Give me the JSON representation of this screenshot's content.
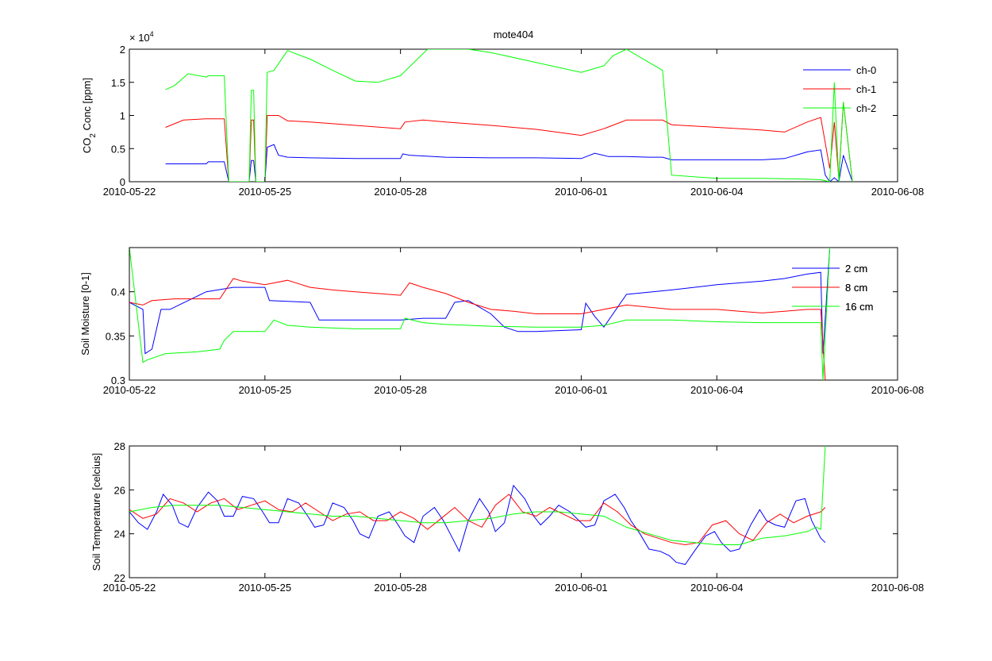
{
  "figure_title": "mote404",
  "chart_data": [
    {
      "type": "line",
      "title": "mote404",
      "xlabel": "",
      "ylabel": "CO2 Conc [ppm]",
      "ylabel_main": "CO",
      "ylabel_sub": "2",
      "ylabel_rest": " Conc [ppm]",
      "scale_label_base": "× 10",
      "scale_label_exp": "4",
      "xlim": [
        "2010-05-22",
        "2010-06-08"
      ],
      "ylim": [
        0,
        20000
      ],
      "yticks": [
        0,
        5000,
        10000,
        15000,
        20000
      ],
      "ytick_labels": [
        "0",
        "0.5",
        "1",
        "1.5",
        "2"
      ],
      "xticks": [
        "2010-05-22",
        "2010-05-25",
        "2010-05-28",
        "2010-06-01",
        "2010-06-04",
        "2010-06-08"
      ],
      "legend_position": "top-right",
      "grid": false,
      "series": [
        {
          "name": "ch-0",
          "color": "#0000ff",
          "x": [
            0.8,
            1.7,
            1.75,
            2.1,
            2.2,
            2.65,
            2.7,
            2.75,
            2.8,
            3.0,
            3.05,
            3.2,
            3.3,
            3.5,
            4.0,
            5.0,
            6.0,
            6.05,
            6.2,
            7.0,
            8.0,
            9.0,
            10.0,
            10.3,
            10.6,
            11.0,
            11.5,
            11.8,
            12.0,
            13.0,
            14.0,
            14.5,
            15.0,
            15.3,
            15.4,
            15.5,
            15.6,
            15.7,
            15.8,
            16.0
          ],
          "y": [
            2700,
            2700,
            3000,
            3000,
            0,
            0,
            3200,
            3200,
            0,
            0,
            5200,
            5600,
            4000,
            3700,
            3600,
            3500,
            3500,
            4200,
            4000,
            3700,
            3600,
            3600,
            3500,
            4300,
            3800,
            3800,
            3700,
            3700,
            3300,
            3300,
            3300,
            3500,
            4500,
            4800,
            1000,
            0,
            600,
            0,
            4000,
            0
          ]
        },
        {
          "name": "ch-1",
          "color": "#ff0000",
          "x": [
            0.8,
            1.2,
            1.7,
            1.75,
            2.1,
            2.2,
            2.65,
            2.7,
            2.75,
            2.8,
            3.0,
            3.05,
            3.3,
            3.5,
            4.0,
            5.0,
            6.0,
            6.1,
            6.5,
            7.0,
            8.0,
            9.0,
            10.0,
            10.5,
            11.0,
            11.5,
            11.8,
            12.0,
            13.0,
            14.0,
            14.5,
            15.0,
            15.3,
            15.5,
            15.6,
            15.7,
            15.8,
            16.0
          ],
          "y": [
            8200,
            9300,
            9500,
            9500,
            9500,
            0,
            0,
            9300,
            9300,
            0,
            0,
            10000,
            10000,
            9200,
            9000,
            8500,
            8000,
            9000,
            9300,
            9000,
            8500,
            7900,
            7000,
            8000,
            9300,
            9300,
            9300,
            8600,
            8200,
            7800,
            7500,
            9000,
            9700,
            2000,
            9000,
            500,
            12000,
            0
          ]
        },
        {
          "name": "ch-2",
          "color": "#00ff00",
          "x": [
            0.8,
            1.0,
            1.3,
            1.7,
            1.75,
            2.1,
            2.2,
            2.65,
            2.7,
            2.75,
            2.8,
            3.0,
            3.05,
            3.2,
            3.5,
            4.0,
            4.5,
            5.0,
            5.5,
            6.0,
            6.6,
            7.5,
            8.0,
            9.0,
            10.0,
            10.5,
            10.7,
            11.0,
            11.5,
            11.8,
            12.0,
            13.0,
            14.0,
            15.0,
            15.3,
            15.5,
            15.6,
            15.7,
            15.8,
            16.0
          ],
          "y": [
            13900,
            14500,
            16300,
            15800,
            16000,
            16000,
            0,
            0,
            13800,
            13800,
            0,
            0,
            16500,
            16800,
            19800,
            18500,
            16800,
            15200,
            15000,
            16000,
            20000,
            20000,
            19500,
            18000,
            16500,
            17500,
            19000,
            20000,
            18000,
            16800,
            1000,
            500,
            500,
            400,
            300,
            0,
            15000,
            0,
            12000,
            0
          ]
        }
      ]
    },
    {
      "type": "line",
      "title": "",
      "xlabel": "",
      "ylabel": "Soil Moisture [0-1]",
      "xlim": [
        "2010-05-22",
        "2010-06-08"
      ],
      "ylim": [
        0.3,
        0.45
      ],
      "yticks": [
        0.3,
        0.35,
        0.4
      ],
      "ytick_labels": [
        "0.3",
        "0.35",
        "0.4"
      ],
      "xticks": [
        "2010-05-22",
        "2010-05-25",
        "2010-05-28",
        "2010-06-01",
        "2010-06-04",
        "2010-06-08"
      ],
      "legend_position": "top-right",
      "grid": false,
      "series": [
        {
          "name": "2 cm",
          "color": "#0000ff",
          "x": [
            0.0,
            0.3,
            0.35,
            0.5,
            0.7,
            0.9,
            1.3,
            1.7,
            2.3,
            3.0,
            3.1,
            4.0,
            4.2,
            5.0,
            6.0,
            6.5,
            7.0,
            7.2,
            7.5,
            8.0,
            8.3,
            8.6,
            9.0,
            10.0,
            10.1,
            10.3,
            10.5,
            11.0,
            12.0,
            13.0,
            13.5,
            14.0,
            14.5,
            15.0,
            15.3,
            15.35,
            15.5
          ],
          "y": [
            0.388,
            0.38,
            0.33,
            0.335,
            0.38,
            0.38,
            0.39,
            0.4,
            0.405,
            0.405,
            0.39,
            0.388,
            0.368,
            0.368,
            0.368,
            0.37,
            0.37,
            0.388,
            0.39,
            0.375,
            0.36,
            0.355,
            0.355,
            0.357,
            0.387,
            0.372,
            0.36,
            0.397,
            0.402,
            0.408,
            0.41,
            0.412,
            0.415,
            0.42,
            0.422,
            0.33,
            0.45
          ]
        },
        {
          "name": "8 cm",
          "color": "#ff0000",
          "x": [
            0.0,
            0.3,
            0.5,
            1.0,
            1.5,
            2.0,
            2.3,
            2.5,
            3.0,
            3.5,
            4.0,
            4.5,
            5.0,
            5.5,
            6.0,
            6.2,
            6.5,
            7.0,
            7.5,
            8.0,
            8.5,
            9.0,
            10.0,
            10.5,
            11.0,
            12.0,
            13.0,
            13.5,
            14.0,
            14.5,
            15.0,
            15.3,
            15.4
          ],
          "y": [
            0.388,
            0.385,
            0.39,
            0.392,
            0.392,
            0.392,
            0.415,
            0.412,
            0.408,
            0.413,
            0.405,
            0.402,
            0.4,
            0.398,
            0.396,
            0.41,
            0.405,
            0.398,
            0.388,
            0.38,
            0.378,
            0.375,
            0.375,
            0.38,
            0.385,
            0.38,
            0.38,
            0.378,
            0.376,
            0.378,
            0.38,
            0.38,
            0.3
          ]
        },
        {
          "name": "16 cm",
          "color": "#00ff00",
          "x": [
            0.0,
            0.3,
            0.4,
            0.8,
            1.5,
            2.0,
            2.1,
            2.3,
            3.0,
            3.2,
            3.5,
            4.0,
            5.0,
            6.0,
            6.1,
            6.5,
            7.0,
            8.0,
            9.0,
            10.0,
            10.5,
            11.0,
            12.0,
            13.0,
            14.0,
            15.0,
            15.3,
            15.35,
            15.5
          ],
          "y": [
            0.45,
            0.32,
            0.323,
            0.33,
            0.332,
            0.335,
            0.345,
            0.355,
            0.355,
            0.368,
            0.362,
            0.36,
            0.358,
            0.358,
            0.37,
            0.365,
            0.363,
            0.361,
            0.36,
            0.36,
            0.362,
            0.368,
            0.368,
            0.366,
            0.365,
            0.365,
            0.365,
            0.3,
            0.45
          ]
        }
      ]
    },
    {
      "type": "line",
      "title": "",
      "xlabel": "",
      "ylabel": "Soil Temperature [celcius]",
      "xlim": [
        "2010-05-22",
        "2010-06-08"
      ],
      "ylim": [
        22,
        28
      ],
      "yticks": [
        22,
        24,
        26,
        28
      ],
      "ytick_labels": [
        "22",
        "24",
        "26",
        "28"
      ],
      "xticks": [
        "2010-05-22",
        "2010-05-25",
        "2010-05-28",
        "2010-06-01",
        "2010-06-04",
        "2010-06-08"
      ],
      "legend_position": "top-right",
      "grid": false,
      "series": [
        {
          "name": "2 cm",
          "color": "#0000ff",
          "x": [
            0.0,
            0.2,
            0.4,
            0.6,
            0.75,
            0.95,
            1.1,
            1.3,
            1.5,
            1.75,
            1.95,
            2.1,
            2.3,
            2.5,
            2.75,
            2.95,
            3.1,
            3.3,
            3.5,
            3.75,
            3.95,
            4.1,
            4.3,
            4.5,
            4.75,
            4.95,
            5.1,
            5.3,
            5.5,
            5.75,
            5.95,
            6.1,
            6.3,
            6.5,
            6.75,
            6.95,
            7.1,
            7.3,
            7.5,
            7.75,
            7.95,
            8.1,
            8.3,
            8.5,
            8.75,
            8.95,
            9.1,
            9.3,
            9.5,
            9.75,
            9.95,
            10.1,
            10.3,
            10.5,
            10.75,
            10.95,
            11.1,
            11.3,
            11.5,
            11.75,
            11.95,
            12.1,
            12.3,
            12.5,
            12.75,
            12.95,
            13.1,
            13.3,
            13.5,
            13.75,
            13.95,
            14.1,
            14.3,
            14.5,
            14.75,
            14.95,
            15.1,
            15.3,
            15.4
          ],
          "y": [
            25,
            24.5,
            24.2,
            25,
            25.8,
            25.3,
            24.5,
            24.3,
            25.2,
            25.9,
            25.5,
            24.8,
            24.8,
            25.7,
            25.6,
            25.0,
            24.5,
            24.5,
            25.6,
            25.4,
            24.8,
            24.3,
            24.4,
            25.4,
            25.2,
            24.6,
            24.0,
            23.8,
            24.8,
            25.0,
            24.4,
            23.9,
            23.6,
            24.8,
            25.2,
            24.6,
            24.0,
            23.2,
            24.6,
            25.6,
            25.0,
            24.1,
            24.5,
            26.2,
            25.6,
            24.8,
            24.4,
            24.8,
            25.3,
            25.0,
            24.6,
            24.3,
            24.4,
            25.5,
            25.8,
            25.2,
            24.6,
            24.0,
            23.3,
            23.2,
            23.0,
            22.7,
            22.6,
            23.2,
            23.9,
            24.1,
            23.6,
            23.2,
            23.3,
            24.4,
            25.1,
            24.6,
            24.4,
            24.3,
            25.5,
            25.6,
            24.6,
            23.8,
            23.6
          ]
        },
        {
          "name": "8 cm",
          "color": "#ff0000",
          "x": [
            0.0,
            0.3,
            0.6,
            0.9,
            1.2,
            1.5,
            1.8,
            2.1,
            2.4,
            2.7,
            3.0,
            3.3,
            3.6,
            3.9,
            4.2,
            4.5,
            4.8,
            5.1,
            5.4,
            5.7,
            6.0,
            6.3,
            6.6,
            6.9,
            7.2,
            7.5,
            7.8,
            8.1,
            8.4,
            8.7,
            9.0,
            9.3,
            9.6,
            9.9,
            10.2,
            10.5,
            10.8,
            11.1,
            11.4,
            11.7,
            12.0,
            12.3,
            12.6,
            12.9,
            13.2,
            13.5,
            13.8,
            14.1,
            14.4,
            14.7,
            15.0,
            15.3,
            15.4
          ],
          "y": [
            25.1,
            24.7,
            24.9,
            25.6,
            25.4,
            25.0,
            25.4,
            25.6,
            25.1,
            25.3,
            25.5,
            25.1,
            25.0,
            25.4,
            25.0,
            24.6,
            24.9,
            25.0,
            24.6,
            24.6,
            25.0,
            24.7,
            24.2,
            24.7,
            25.2,
            24.6,
            24.3,
            25.3,
            25.8,
            25.0,
            24.8,
            25.2,
            24.9,
            24.6,
            24.6,
            25.4,
            25.0,
            24.4,
            24.0,
            23.8,
            23.6,
            23.5,
            23.6,
            24.4,
            24.6,
            24.0,
            23.7,
            24.5,
            24.9,
            24.5,
            24.8,
            25.0,
            25.2
          ]
        },
        {
          "name": "16 cm",
          "color": "#00ff00",
          "x": [
            0.0,
            0.5,
            1.0,
            1.5,
            2.0,
            2.5,
            3.0,
            3.5,
            4.0,
            4.5,
            5.0,
            5.5,
            6.0,
            6.5,
            7.0,
            7.5,
            8.0,
            8.5,
            9.0,
            9.5,
            10.0,
            10.5,
            11.0,
            11.5,
            12.0,
            12.5,
            13.0,
            13.5,
            14.0,
            14.5,
            15.0,
            15.2,
            15.3,
            15.4
          ],
          "y": [
            25.0,
            25.2,
            25.3,
            25.3,
            25.3,
            25.2,
            25.1,
            25.0,
            24.9,
            24.8,
            24.8,
            24.7,
            24.6,
            24.5,
            24.5,
            24.6,
            24.7,
            24.9,
            25.0,
            25.0,
            24.9,
            24.8,
            24.3,
            24.0,
            23.7,
            23.6,
            23.5,
            23.5,
            23.8,
            23.9,
            24.1,
            24.3,
            24.2,
            28.0
          ]
        }
      ]
    }
  ]
}
